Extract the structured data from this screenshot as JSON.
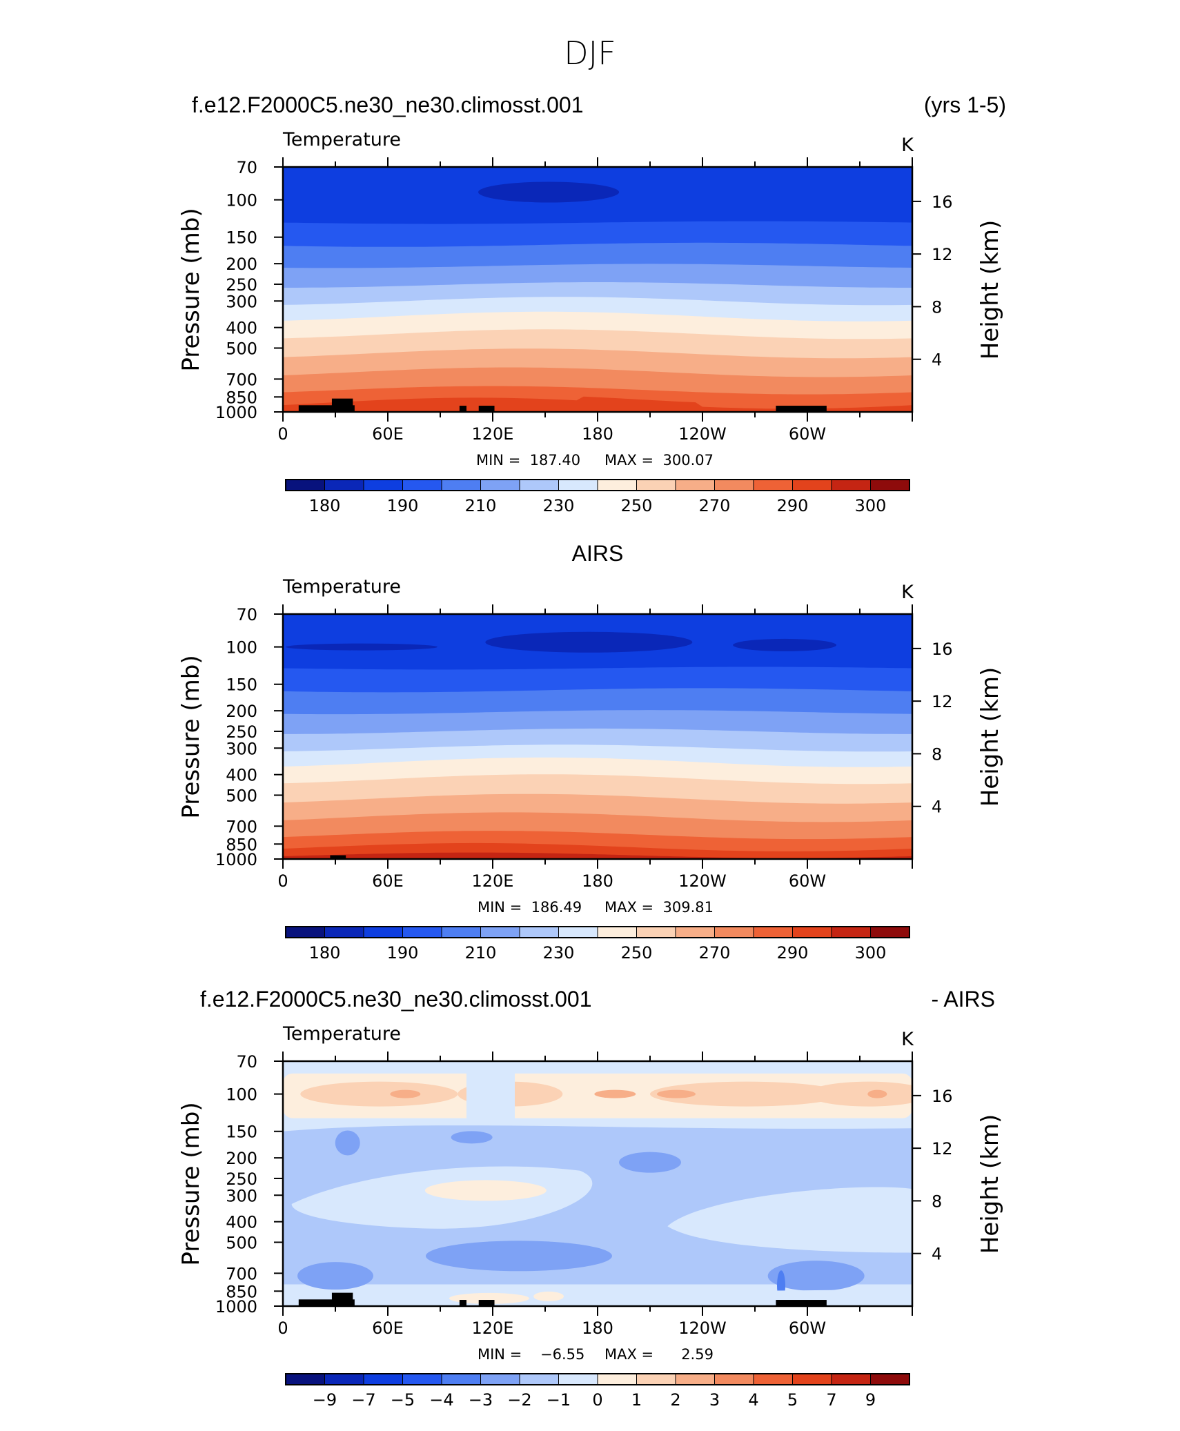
{
  "figure": {
    "title": "DJF"
  },
  "colors": {
    "frame": "#000000",
    "land": "#000000"
  },
  "colorbars": {
    "temperature": {
      "colors": [
        "#08127d",
        "#0a27b8",
        "#0e3ee0",
        "#2558f0",
        "#4e7ef2",
        "#7ea2f5",
        "#aec8fa",
        "#d8e8fd",
        "#fdeedd",
        "#fbd2b5",
        "#f7ae88",
        "#f28a5f",
        "#ee6236",
        "#e3431c",
        "#c52513",
        "#8e0b0b"
      ],
      "labels": [
        "180",
        "190",
        "210",
        "230",
        "250",
        "270",
        "290",
        "300"
      ]
    },
    "difference": {
      "colors": [
        "#08127d",
        "#0a27b8",
        "#0e3ee0",
        "#2558f0",
        "#4e7ef2",
        "#7ea2f5",
        "#aec8fa",
        "#d8e8fd",
        "#fdeedd",
        "#fbd2b5",
        "#f7ae88",
        "#f28a5f",
        "#ee6236",
        "#e3431c",
        "#c52513",
        "#8e0b0b"
      ],
      "labels": [
        "−9",
        "−7",
        "−5",
        "−4",
        "−3",
        "−2",
        "−1",
        "0",
        "1",
        "2",
        "3",
        "4",
        "5",
        "7",
        "9"
      ]
    }
  },
  "panels": [
    {
      "title_left": "f.e12.F2000C5.ne30_ne30.climosst.001",
      "title_right": "(yrs 1-5)",
      "title_center": "",
      "variable": "Temperature",
      "units": "K",
      "min_label": "MIN =  187.40",
      "max_label": "MAX =  300.07",
      "ylabel": "Pressure (mb)",
      "ylabel_right": "Height (km)"
    },
    {
      "title_left": "",
      "title_right": "",
      "title_center": "AIRS",
      "variable": "Temperature",
      "units": "K",
      "min_label": "MIN =  186.49",
      "max_label": "MAX =  309.81",
      "ylabel": "Pressure (mb)",
      "ylabel_right": "Height (km)"
    },
    {
      "title_left": "f.e12.F2000C5.ne30_ne30.climosst.001",
      "title_right": "- AIRS",
      "title_center": "",
      "variable": "Temperature",
      "units": "K",
      "min_label": "MIN =    −6.55",
      "max_label": "MAX =      2.59",
      "ylabel": "Pressure (mb)",
      "ylabel_right": "Height (km)"
    }
  ],
  "chart_data": [
    {
      "type": "heatmap",
      "title": "f.e12.F2000C5.ne30_ne30.climosst.001 (yrs 1-5)",
      "xlabel": "",
      "ylabel": "Pressure (mb)",
      "ylabel_right": "Height (km)",
      "x_ticks": [
        "0",
        "60E",
        "120E",
        "180",
        "120W",
        "60W"
      ],
      "x_tick_values": [
        0,
        60,
        120,
        180,
        240,
        300
      ],
      "xlim": [
        0,
        360
      ],
      "y_ticks": [
        "70",
        "100",
        "150",
        "200",
        "250",
        "300",
        "400",
        "500",
        "700",
        "850",
        "1000"
      ],
      "y_tick_values": [
        70,
        100,
        150,
        200,
        250,
        300,
        400,
        500,
        700,
        850,
        1000
      ],
      "ylim": [
        1000,
        70
      ],
      "y_scale": "log",
      "height_ticks": [
        "16",
        "12",
        "8",
        "4"
      ],
      "height_tick_values": [
        16,
        12,
        8,
        4
      ],
      "min": 187.4,
      "max": 300.07,
      "band_colors_top_to_bottom": [
        "#0e3ee0",
        "#2558f0",
        "#4e7ef2",
        "#7ea2f5",
        "#aec8fa",
        "#d8e8fd",
        "#fdeedd",
        "#fbd2b5",
        "#f7ae88",
        "#f28a5f",
        "#ee6236",
        "#e3431c"
      ]
    },
    {
      "type": "heatmap",
      "title": "AIRS",
      "xlabel": "",
      "ylabel": "Pressure (mb)",
      "ylabel_right": "Height (km)",
      "x_ticks": [
        "0",
        "60E",
        "120E",
        "180",
        "120W",
        "60W"
      ],
      "x_tick_values": [
        0,
        60,
        120,
        180,
        240,
        300
      ],
      "xlim": [
        0,
        360
      ],
      "y_ticks": [
        "70",
        "100",
        "150",
        "200",
        "250",
        "300",
        "400",
        "500",
        "700",
        "850",
        "1000"
      ],
      "y_tick_values": [
        70,
        100,
        150,
        200,
        250,
        300,
        400,
        500,
        700,
        850,
        1000
      ],
      "ylim": [
        1000,
        70
      ],
      "y_scale": "log",
      "height_ticks": [
        "16",
        "12",
        "8",
        "4"
      ],
      "height_tick_values": [
        16,
        12,
        8,
        4
      ],
      "min": 186.49,
      "max": 309.81,
      "band_colors_top_to_bottom": [
        "#0e3ee0",
        "#2558f0",
        "#4e7ef2",
        "#7ea2f5",
        "#aec8fa",
        "#d8e8fd",
        "#fdeedd",
        "#fbd2b5",
        "#f7ae88",
        "#f28a5f",
        "#ee6236",
        "#e3431c",
        "#c52513"
      ]
    },
    {
      "type": "heatmap",
      "title": "f.e12.F2000C5.ne30_ne30.climosst.001 - AIRS",
      "xlabel": "",
      "ylabel": "Pressure (mb)",
      "ylabel_right": "Height (km)",
      "x_ticks": [
        "0",
        "60E",
        "120E",
        "180",
        "120W",
        "60W"
      ],
      "x_tick_values": [
        0,
        60,
        120,
        180,
        240,
        300
      ],
      "xlim": [
        0,
        360
      ],
      "y_ticks": [
        "70",
        "100",
        "150",
        "200",
        "250",
        "300",
        "400",
        "500",
        "700",
        "850",
        "1000"
      ],
      "y_tick_values": [
        70,
        100,
        150,
        200,
        250,
        300,
        400,
        500,
        700,
        850,
        1000
      ],
      "ylim": [
        1000,
        70
      ],
      "y_scale": "log",
      "height_ticks": [
        "16",
        "12",
        "8",
        "4"
      ],
      "height_tick_values": [
        16,
        12,
        8,
        4
      ],
      "min": -6.55,
      "max": 2.59
    }
  ]
}
